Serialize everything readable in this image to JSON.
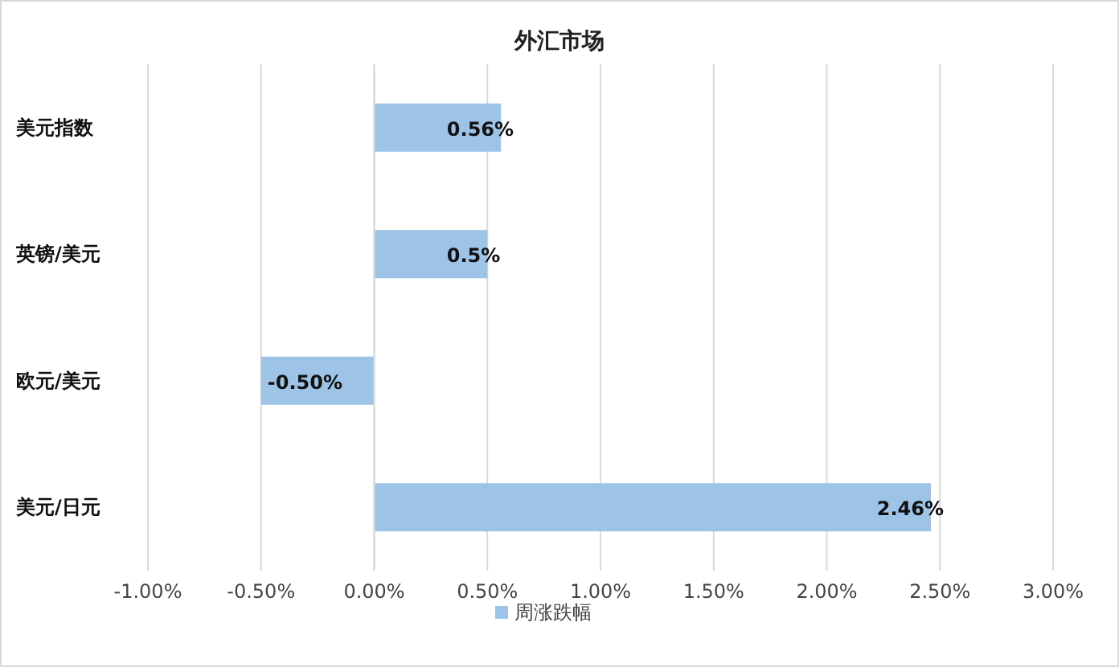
{
  "chart_data": {
    "type": "bar",
    "orientation": "horizontal",
    "title": "外汇市场",
    "categories": [
      "美元指数",
      "英镑/美元",
      "欧元/美元",
      "美元/日元"
    ],
    "series": [
      {
        "name": "周涨跌幅",
        "color": "#9dc3e6",
        "values": [
          0.56,
          0.5,
          -0.5,
          2.46
        ],
        "value_labels": [
          "0.56%",
          "0.5%",
          "-0.50%",
          "2.46%"
        ]
      }
    ],
    "xlim": [
      -1,
      3
    ],
    "xticks": [
      {
        "value": -1,
        "label": "-1.00%"
      },
      {
        "value": -0.5,
        "label": "-0.50%"
      },
      {
        "value": 0,
        "label": "0.00%"
      },
      {
        "value": 0.5,
        "label": "0.50%"
      },
      {
        "value": 1,
        "label": "1.00%"
      },
      {
        "value": 1.5,
        "label": "1.50%"
      },
      {
        "value": 2,
        "label": "2.00%"
      },
      {
        "value": 2.5,
        "label": "2.50%"
      },
      {
        "value": 3,
        "label": "3.00%"
      }
    ],
    "grid": "x",
    "legend": "bottom"
  }
}
